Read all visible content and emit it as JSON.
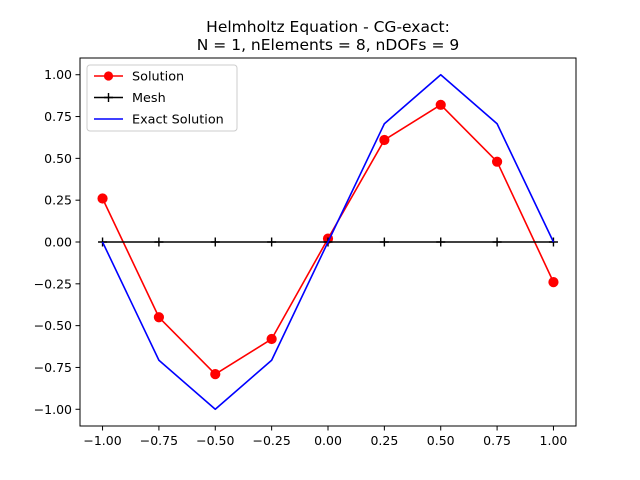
{
  "chart_data": {
    "type": "line",
    "title_lines": [
      "Helmholtz Equation - CG-exact:",
      "N = 1,  nElements = 8,  nDOFs = 9"
    ],
    "xlabel": "",
    "ylabel": "",
    "xlim": [
      -1.1,
      1.1
    ],
    "ylim": [
      -1.1,
      1.1
    ],
    "x_ticks": [
      -1.0,
      -0.75,
      -0.5,
      -0.25,
      0.0,
      0.25,
      0.5,
      0.75,
      1.0
    ],
    "x_tick_labels": [
      "−1.00",
      "−0.75",
      "−0.50",
      "−0.25",
      "0.00",
      "0.25",
      "0.50",
      "0.75",
      "1.00"
    ],
    "y_ticks": [
      -1.0,
      -0.75,
      -0.5,
      -0.25,
      0.0,
      0.25,
      0.5,
      0.75,
      1.0
    ],
    "y_tick_labels": [
      "−1.00",
      "−0.75",
      "−0.50",
      "−0.25",
      "0.00",
      "0.25",
      "0.50",
      "0.75",
      "1.00"
    ],
    "grid": false,
    "legend_position": "top-left",
    "x": [
      -1.0,
      -0.75,
      -0.5,
      -0.25,
      0.0,
      0.25,
      0.5,
      0.75,
      1.0
    ],
    "series": [
      {
        "name": "Solution",
        "color": "#ff0000",
        "marker": "circle",
        "values": [
          0.26,
          -0.45,
          -0.79,
          -0.58,
          0.02,
          0.61,
          0.82,
          0.48,
          -0.24
        ]
      },
      {
        "name": "Mesh",
        "color": "#000000",
        "marker": "plus",
        "values": [
          0,
          0,
          0,
          0,
          0,
          0,
          0,
          0,
          0
        ]
      },
      {
        "name": "Exact Solution",
        "color": "#0000ff",
        "marker": "none",
        "values": [
          0.0,
          -0.707,
          -1.0,
          -0.707,
          0.0,
          0.707,
          1.0,
          0.707,
          0.0
        ]
      }
    ]
  }
}
